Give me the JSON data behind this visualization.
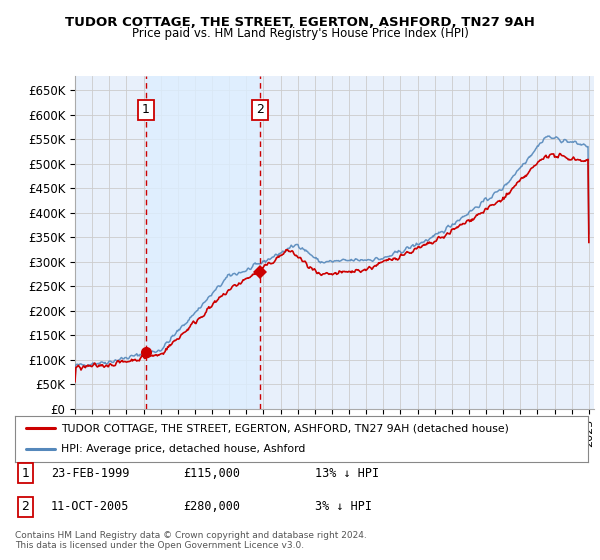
{
  "title": "TUDOR COTTAGE, THE STREET, EGERTON, ASHFORD, TN27 9AH",
  "subtitle": "Price paid vs. HM Land Registry's House Price Index (HPI)",
  "legend_line1": "TUDOR COTTAGE, THE STREET, EGERTON, ASHFORD, TN27 9AH (detached house)",
  "legend_line2": "HPI: Average price, detached house, Ashford",
  "footer": "Contains HM Land Registry data © Crown copyright and database right 2024.\nThis data is licensed under the Open Government Licence v3.0.",
  "sale1_label": "1",
  "sale1_date": "23-FEB-1999",
  "sale1_price": "£115,000",
  "sale1_hpi": "13% ↓ HPI",
  "sale1_x": 1999.14,
  "sale1_y": 115000,
  "sale2_label": "2",
  "sale2_date": "11-OCT-2005",
  "sale2_price": "£280,000",
  "sale2_hpi": "3% ↓ HPI",
  "sale2_x": 2005.79,
  "sale2_y": 280000,
  "ylim": [
    0,
    680000
  ],
  "yticks": [
    0,
    50000,
    100000,
    150000,
    200000,
    250000,
    300000,
    350000,
    400000,
    450000,
    500000,
    550000,
    600000,
    650000
  ],
  "xlim_left": 1995,
  "xlim_right": 2025.3,
  "color_red": "#cc0000",
  "color_blue": "#5588bb",
  "color_grid": "#cccccc",
  "color_bg": "#e8f0fb",
  "color_shade": "#ddeeff",
  "background_color": "#ffffff"
}
